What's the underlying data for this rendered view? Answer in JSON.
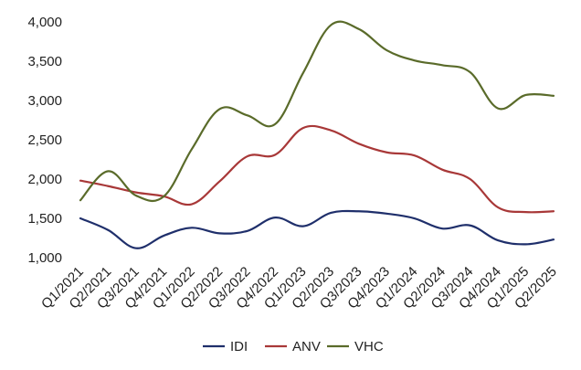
{
  "chart_data": {
    "type": "line",
    "title": "",
    "xlabel": "",
    "ylabel": "",
    "ylim": [
      1000,
      4000
    ],
    "yticks": [
      "1,000",
      "1,500",
      "2,000",
      "2,500",
      "3,000",
      "3,500",
      "4,000"
    ],
    "ytick_values": [
      1000,
      1500,
      2000,
      2500,
      3000,
      3500,
      4000
    ],
    "categories": [
      "Q1/2021",
      "Q2/2021",
      "Q3/2021",
      "Q4/2021",
      "Q1/2022",
      "Q2/2022",
      "Q3/2022",
      "Q4/2022",
      "Q1/2023",
      "Q2/2023",
      "Q3/2023",
      "Q4/2023",
      "Q1/2024",
      "Q2/2024",
      "Q3/2024",
      "Q4/2024",
      "Q1/2025",
      "Q2/2025"
    ],
    "grid": false,
    "legend_position": "bottom",
    "series": [
      {
        "name": "IDI",
        "color": "#1f2f6b",
        "values": [
          1500,
          1350,
          1120,
          1280,
          1380,
          1310,
          1340,
          1510,
          1400,
          1570,
          1590,
          1560,
          1500,
          1370,
          1410,
          1220,
          1170,
          1230
        ]
      },
      {
        "name": "ANV",
        "color": "#a83838",
        "values": [
          1980,
          1910,
          1830,
          1780,
          1680,
          1970,
          2290,
          2310,
          2650,
          2620,
          2450,
          2340,
          2300,
          2120,
          2000,
          1640,
          1580,
          1590
        ]
      },
      {
        "name": "VHC",
        "color": "#5a6b2a",
        "values": [
          1730,
          2100,
          1790,
          1780,
          2380,
          2890,
          2810,
          2700,
          3350,
          3960,
          3910,
          3640,
          3510,
          3450,
          3360,
          2900,
          3070,
          3060
        ]
      }
    ]
  }
}
